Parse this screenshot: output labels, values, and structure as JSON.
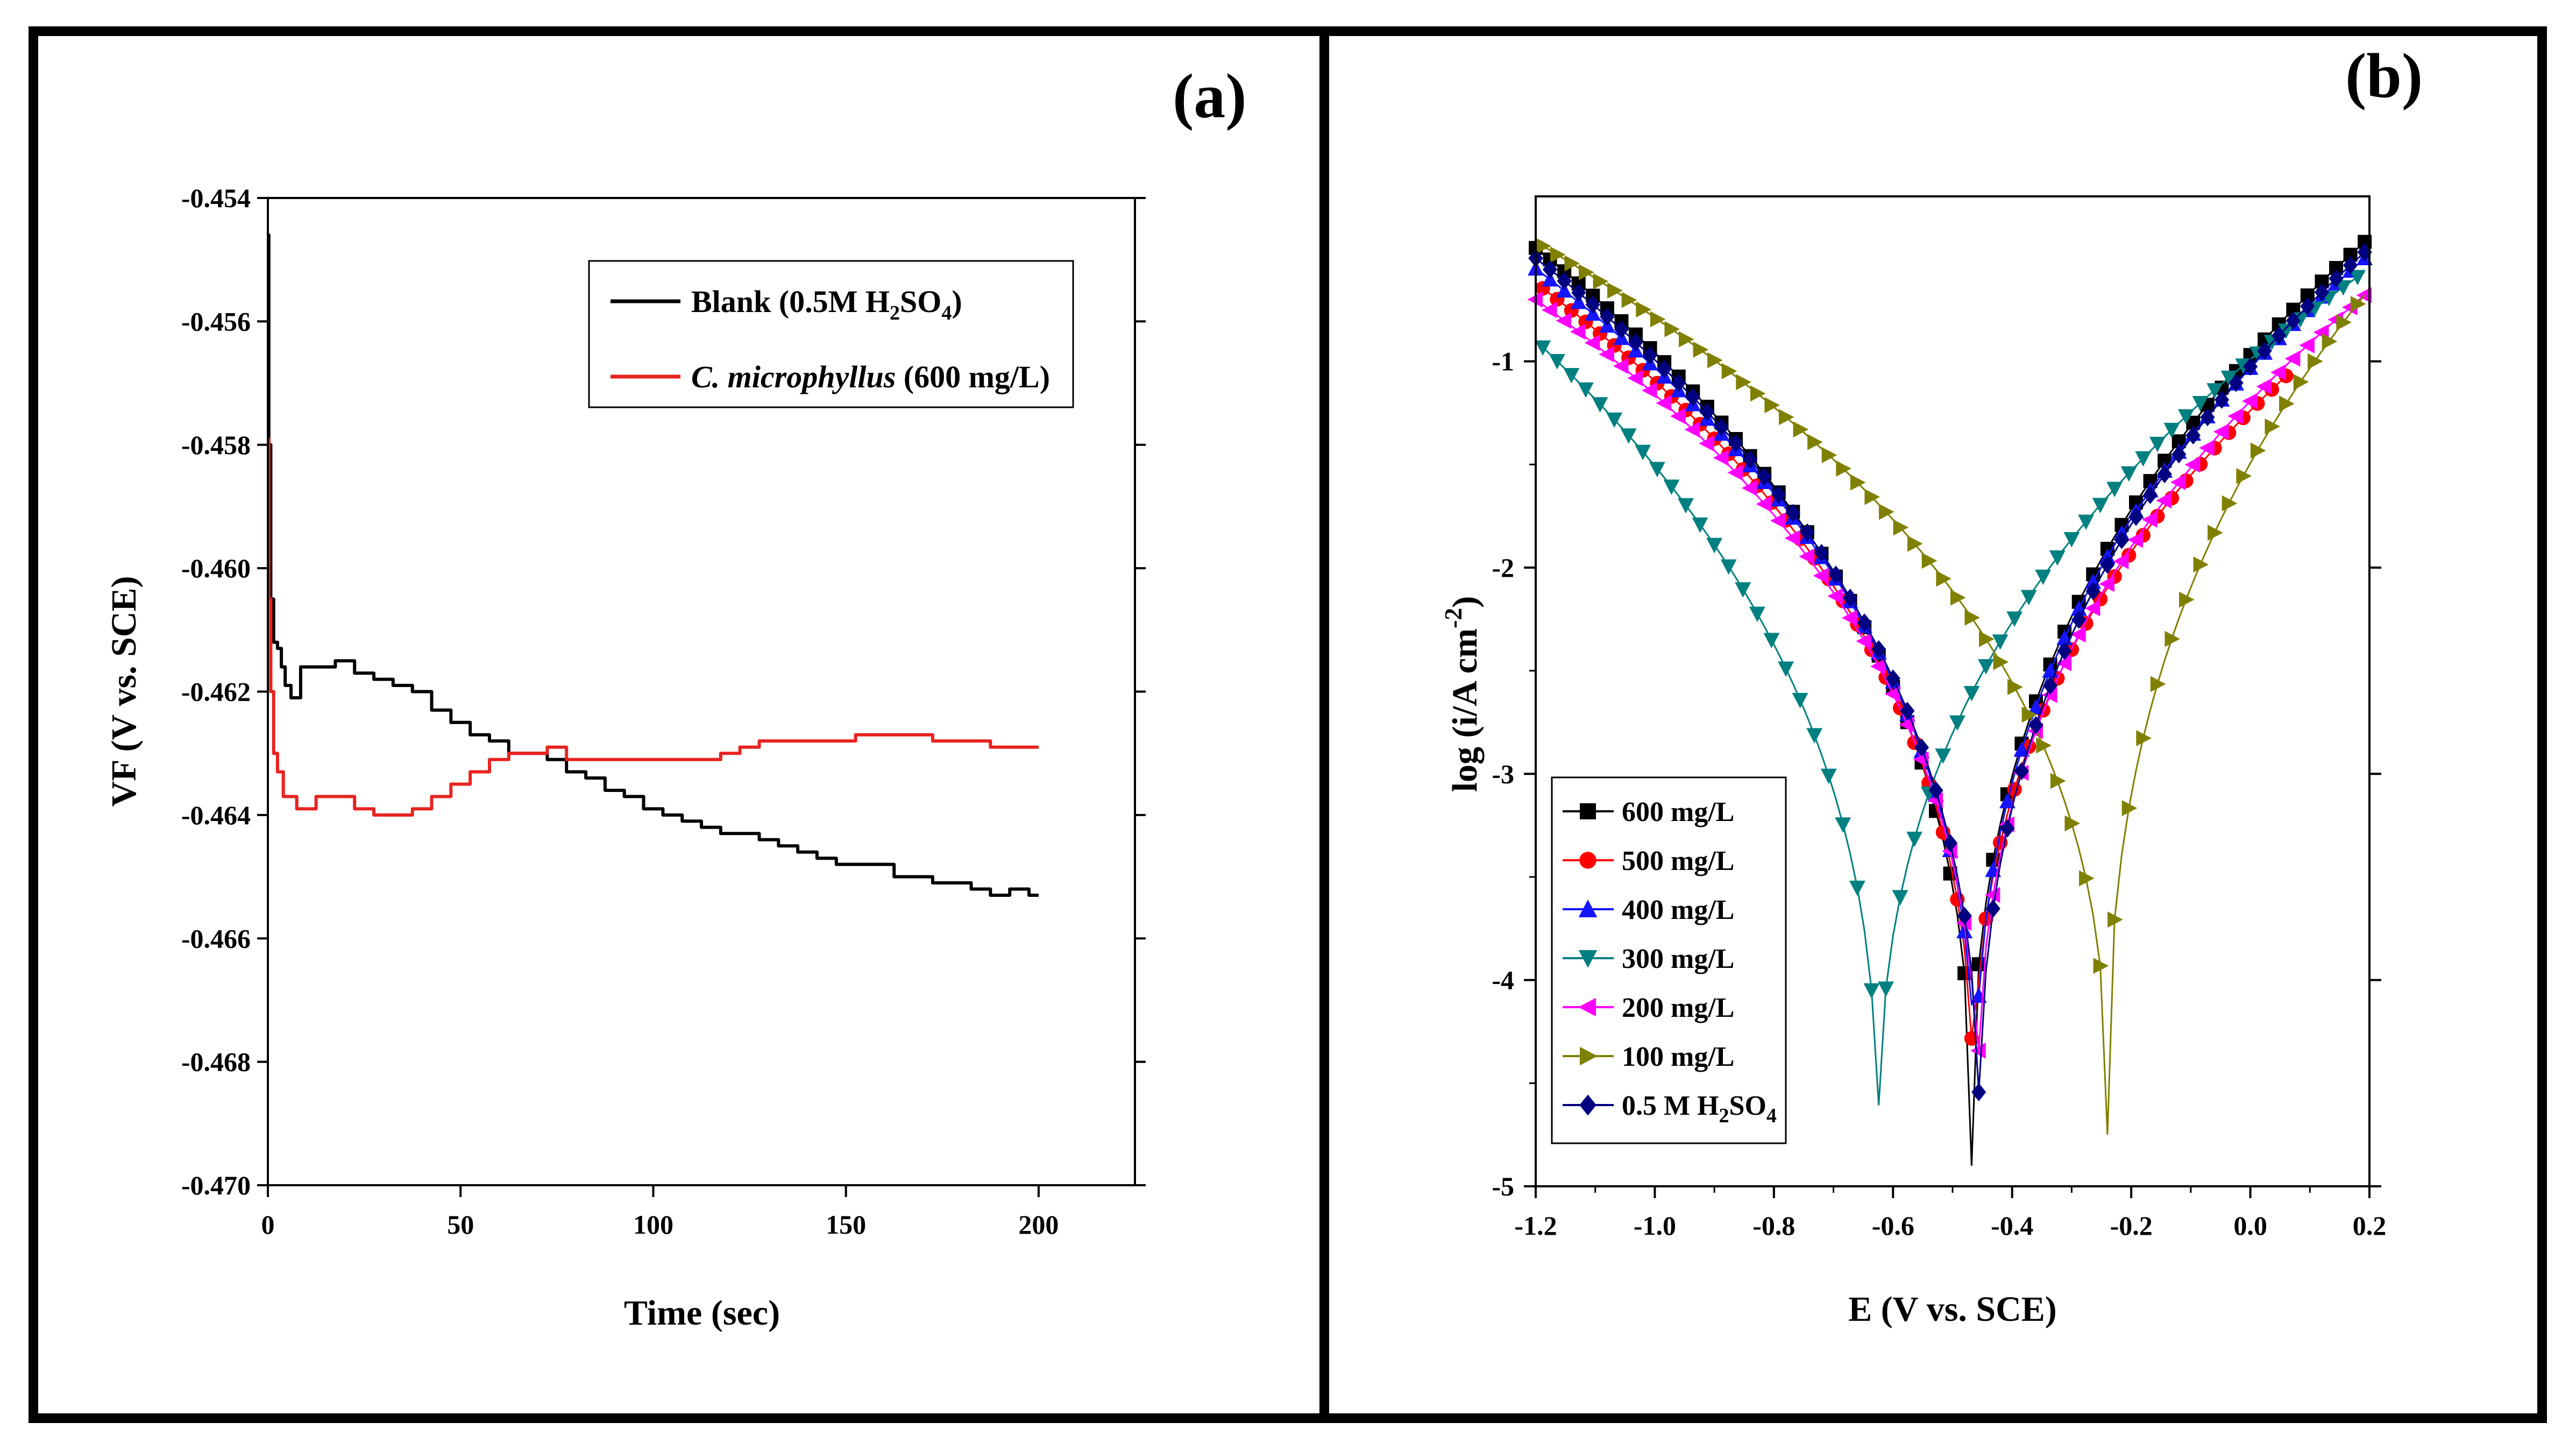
{
  "figure": {
    "panels": [
      "(a)",
      "(b)"
    ]
  },
  "chart_data": [
    {
      "type": "line",
      "panel_label": "(a)",
      "title": "",
      "xlabel": "Time (sec)",
      "ylabel": "VF (V vs. SCE)",
      "xlim": [
        0,
        225
      ],
      "ylim": [
        -0.47,
        -0.454
      ],
      "xticks": [
        0,
        50,
        100,
        150,
        200
      ],
      "xtick_labels": [
        "0",
        "50",
        "100",
        "150",
        "200"
      ],
      "yticks": [
        -0.454,
        -0.456,
        -0.458,
        -0.46,
        -0.462,
        -0.464,
        -0.466,
        -0.468,
        -0.47
      ],
      "ytick_labels": [
        "-0.454",
        "-0.456",
        "-0.458",
        "-0.460",
        "-0.462",
        "-0.464",
        "-0.466",
        "-0.468",
        "-0.470"
      ],
      "legend_position": "top-right",
      "series": [
        {
          "name": "Blank (0.5M H2SO4)",
          "legend": {
            "main": "Blank (0.5M H",
            "sub1": "2",
            "mid": "SO",
            "sub2": "4",
            "tail": ")"
          },
          "color": "#000000",
          "x": [
            0,
            0.5,
            1,
            2,
            3,
            4,
            5,
            7,
            10,
            15,
            20,
            25,
            30,
            35,
            40,
            45,
            50,
            55,
            60,
            65,
            70,
            75,
            80,
            85,
            90,
            95,
            100,
            105,
            110,
            115,
            120,
            125,
            130,
            135,
            140,
            145,
            150,
            155,
            160,
            165,
            170,
            175,
            180,
            185,
            190,
            195,
            200
          ],
          "y": [
            -0.4546,
            -0.458,
            -0.4605,
            -0.4612,
            -0.4613,
            -0.4616,
            -0.4619,
            -0.4621,
            -0.4616,
            -0.4616,
            -0.4615,
            -0.4617,
            -0.4618,
            -0.4619,
            -0.462,
            -0.4623,
            -0.4625,
            -0.4627,
            -0.4628,
            -0.463,
            -0.463,
            -0.4631,
            -0.4633,
            -0.4634,
            -0.4636,
            -0.4637,
            -0.4639,
            -0.464,
            -0.4641,
            -0.4642,
            -0.4643,
            -0.4643,
            -0.4644,
            -0.4645,
            -0.4646,
            -0.4647,
            -0.4648,
            -0.4648,
            -0.4648,
            -0.465,
            -0.465,
            -0.4651,
            -0.4651,
            -0.4652,
            -0.4653,
            -0.4652,
            -0.4653
          ]
        },
        {
          "name": "C. microphyllus (600 mg/L)",
          "legend": {
            "italic": "C. microphyllus",
            "rest": " (600 mg/L)"
          },
          "color": "#e8231f",
          "x": [
            0,
            0.5,
            1,
            2,
            3,
            5,
            10,
            15,
            20,
            25,
            30,
            35,
            40,
            45,
            50,
            55,
            60,
            65,
            70,
            75,
            80,
            85,
            90,
            95,
            100,
            105,
            110,
            115,
            120,
            125,
            130,
            135,
            140,
            145,
            150,
            155,
            160,
            165,
            170,
            175,
            180,
            185,
            190,
            195,
            200
          ],
          "y": [
            -0.4579,
            -0.4605,
            -0.462,
            -0.463,
            -0.4633,
            -0.4637,
            -0.4639,
            -0.4637,
            -0.4637,
            -0.4639,
            -0.464,
            -0.464,
            -0.4639,
            -0.4637,
            -0.4635,
            -0.4633,
            -0.4631,
            -0.463,
            -0.463,
            -0.4629,
            -0.4631,
            -0.4631,
            -0.4631,
            -0.4631,
            -0.4631,
            -0.4631,
            -0.4631,
            -0.4631,
            -0.463,
            -0.4629,
            -0.4628,
            -0.4628,
            -0.4628,
            -0.4628,
            -0.4628,
            -0.4627,
            -0.4627,
            -0.4627,
            -0.4627,
            -0.4628,
            -0.4628,
            -0.4628,
            -0.4629,
            -0.4629,
            -0.4629
          ]
        }
      ]
    },
    {
      "type": "line",
      "panel_label": "(b)",
      "title": "",
      "xlabel": "E (V vs. SCE)",
      "ylabel": "log (i/A cm",
      "ylabel_sup": "-2",
      "ylabel_tail": ")",
      "xlim": [
        -1.2,
        0.2
      ],
      "ylim": [
        -5,
        -0.2
      ],
      "xticks": [
        -1.2,
        -1.0,
        -0.8,
        -0.6,
        -0.4,
        -0.2,
        0.0,
        0.2
      ],
      "xtick_labels": [
        "-1.2",
        "-1.0",
        "-0.8",
        "-0.6",
        "-0.4",
        "-0.2",
        "0.0",
        "0.2"
      ],
      "yticks": [
        -1,
        -2,
        -3,
        -4,
        -5
      ],
      "ytick_labels": [
        "-1",
        "-2",
        "-3",
        "-4",
        "-5"
      ],
      "legend_position": "bottom-left",
      "model": "Tafel V-shape: log i = max(top - sc*|E-Ecorr|^p, tip)",
      "series": [
        {
          "name": "600 mg/L",
          "color": "#000000",
          "marker": "square",
          "ecorr": -0.468,
          "tip": -4.9,
          "top_cathodic": -0.45,
          "top_anodic": -0.4,
          "sc": 8.2,
          "p": 0.62,
          "sa": 7.8,
          "pa": 0.66,
          "e_max": 0.2
        },
        {
          "name": "500 mg/L",
          "color": "#ff0000",
          "marker": "circle",
          "ecorr": -0.465,
          "tip": -4.8,
          "top_cathodic": -0.62,
          "top_anodic": -0.72,
          "sc": 7.6,
          "p": 0.62,
          "sa": 6.6,
          "pa": 0.72,
          "e_max": 0.06
        },
        {
          "name": "400 mg/L",
          "color": "#1515ff",
          "marker": "triangle-up",
          "ecorr": -0.462,
          "tip": -4.8,
          "top_cathodic": -0.55,
          "top_anodic": -0.48,
          "sc": 7.4,
          "p": 0.62,
          "sa": 7.0,
          "pa": 0.68,
          "e_max": 0.2
        },
        {
          "name": "300 mg/L",
          "color": "#008080",
          "marker": "triangle-down",
          "ecorr": -0.625,
          "tip": -4.95,
          "top_cathodic": -0.9,
          "top_anodic": -0.55,
          "sc": 9.6,
          "p": 0.55,
          "sa": 7.4,
          "pa": 0.62,
          "e_max": 0.2
        },
        {
          "name": "200 mg/L",
          "color": "#ff00ff",
          "marker": "triangle-left",
          "ecorr": -0.458,
          "tip": -4.8,
          "top_cathodic": -0.7,
          "top_anodic": -0.66,
          "sc": 7.2,
          "p": 0.64,
          "sa": 6.6,
          "pa": 0.7,
          "e_max": 0.2
        },
        {
          "name": "100 mg/L",
          "color": "#808000",
          "marker": "triangle-right",
          "ecorr": -0.24,
          "tip": -4.75,
          "top_cathodic": -0.42,
          "top_anodic": -0.65,
          "sc": 5.3,
          "p": 0.72,
          "sa": 7.6,
          "pa": 0.68,
          "e_max": 0.2
        },
        {
          "name": "0.5 M H2SO4",
          "legend": {
            "main": "0.5 M H",
            "sub1": "2",
            "mid": "SO",
            "sub2": "4"
          },
          "color": "#000080",
          "marker": "diamond",
          "ecorr": -0.455,
          "tip": -4.9,
          "top_cathodic": -0.5,
          "top_anodic": -0.45,
          "sc": 6.0,
          "p": 0.7,
          "sa": 7.2,
          "pa": 0.66,
          "e_max": 0.2
        }
      ]
    }
  ]
}
